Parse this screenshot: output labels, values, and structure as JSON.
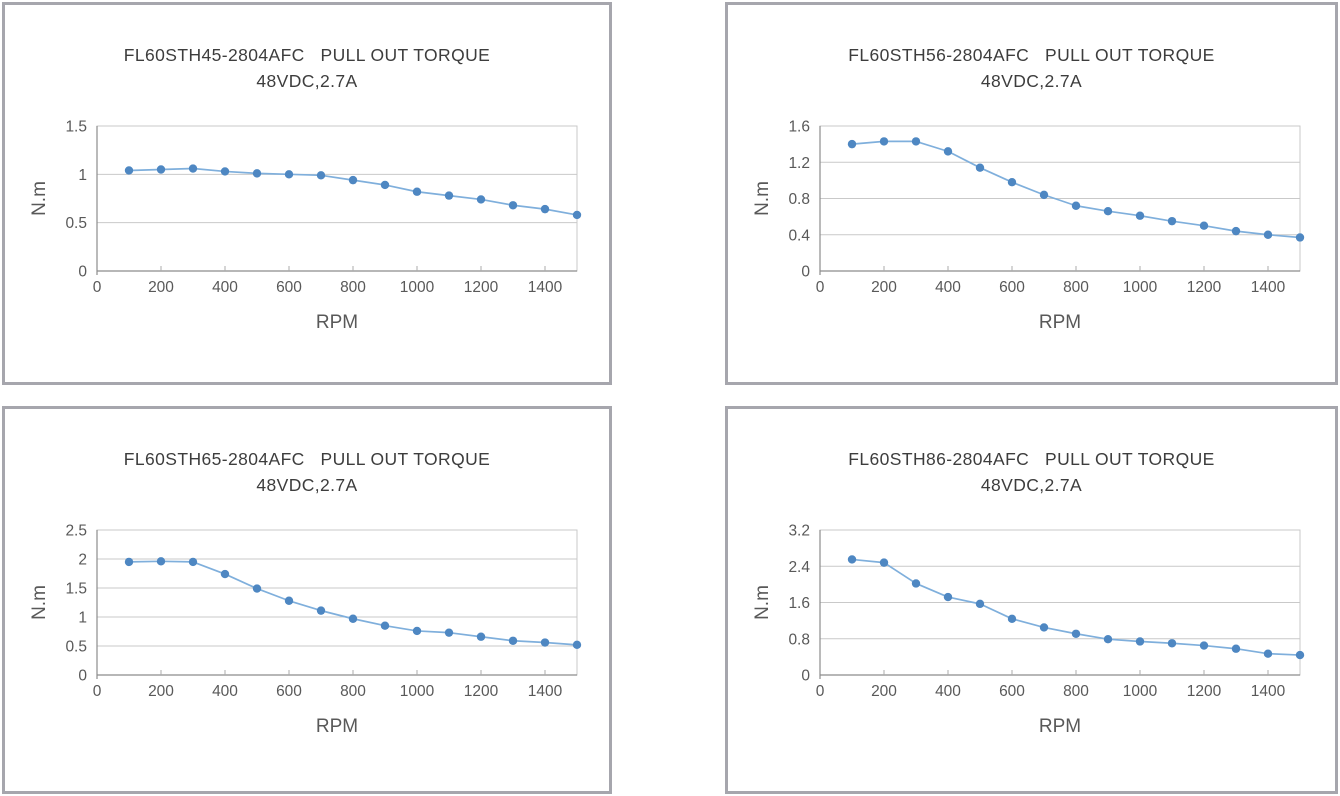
{
  "theme": {
    "panel_border": "#a6a6ad",
    "grid_color": "#c9c9c9",
    "axis_color": "#8c8c8c",
    "tick_color": "#ababab",
    "tick_label_color": "#595959",
    "axis_title_color": "#454545",
    "line_color": "#7fafdc",
    "marker_color": "#4e87c2",
    "background": "#ffffff"
  },
  "chart_data": [
    {
      "type": "line",
      "title": "FL60STH45-2804AFC   PULL OUT TORQUE",
      "subtitle": "48VDC,2.7A",
      "xlabel": "RPM",
      "ylabel": "N.m",
      "xlim": [
        0,
        1500
      ],
      "ylim": [
        0,
        1.5
      ],
      "xticks": [
        0,
        200,
        400,
        600,
        800,
        1000,
        1200,
        1400
      ],
      "xtick_labels": [
        "0",
        "200",
        "400",
        "600",
        "800",
        "1000",
        "1200",
        "1400"
      ],
      "yticks": [
        0,
        0.5,
        1,
        1.5
      ],
      "ytick_labels": [
        "0",
        "0.5",
        "1",
        "1.5"
      ],
      "grid": true,
      "legend": "none",
      "x": [
        100,
        200,
        300,
        400,
        500,
        600,
        700,
        800,
        900,
        1000,
        1100,
        1200,
        1300,
        1400,
        1500
      ],
      "series": [
        {
          "name": "pull-out-torque",
          "values": [
            1.04,
            1.05,
            1.06,
            1.03,
            1.01,
            1.0,
            0.99,
            0.94,
            0.89,
            0.82,
            0.78,
            0.74,
            0.68,
            0.64,
            0.58
          ]
        }
      ]
    },
    {
      "type": "line",
      "title": "FL60STH56-2804AFC   PULL OUT TORQUE",
      "subtitle": "48VDC,2.7A",
      "xlabel": "RPM",
      "ylabel": "N.m",
      "xlim": [
        0,
        1500
      ],
      "ylim": [
        0,
        1.6
      ],
      "xticks": [
        0,
        200,
        400,
        600,
        800,
        1000,
        1200,
        1400
      ],
      "xtick_labels": [
        "0",
        "200",
        "400",
        "600",
        "800",
        "1000",
        "1200",
        "1400"
      ],
      "yticks": [
        0,
        0.4,
        0.8,
        1.2,
        1.6
      ],
      "ytick_labels": [
        "0",
        "0.4",
        "0.8",
        "1.2",
        "1.6"
      ],
      "grid": true,
      "legend": "none",
      "x": [
        100,
        200,
        300,
        400,
        500,
        600,
        700,
        800,
        900,
        1000,
        1100,
        1200,
        1300,
        1400,
        1500
      ],
      "series": [
        {
          "name": "pull-out-torque",
          "values": [
            1.4,
            1.43,
            1.43,
            1.32,
            1.14,
            0.98,
            0.84,
            0.72,
            0.66,
            0.61,
            0.55,
            0.5,
            0.44,
            0.4,
            0.37
          ]
        }
      ]
    },
    {
      "type": "line",
      "title": "FL60STH65-2804AFC   PULL OUT TORQUE",
      "subtitle": "48VDC,2.7A",
      "xlabel": "RPM",
      "ylabel": "N.m",
      "xlim": [
        0,
        1500
      ],
      "ylim": [
        0,
        2.5
      ],
      "xticks": [
        0,
        200,
        400,
        600,
        800,
        1000,
        1200,
        1400
      ],
      "xtick_labels": [
        "0",
        "200",
        "400",
        "600",
        "800",
        "1000",
        "1200",
        "1400"
      ],
      "yticks": [
        0,
        0.5,
        1,
        1.5,
        2,
        2.5
      ],
      "ytick_labels": [
        "0",
        "0.5",
        "1",
        "1.5",
        "2",
        "2.5"
      ],
      "grid": true,
      "legend": "none",
      "x": [
        100,
        200,
        300,
        400,
        500,
        600,
        700,
        800,
        900,
        1000,
        1100,
        1200,
        1300,
        1400,
        1500
      ],
      "series": [
        {
          "name": "pull-out-torque",
          "values": [
            1.95,
            1.96,
            1.95,
            1.74,
            1.49,
            1.28,
            1.11,
            0.97,
            0.85,
            0.76,
            0.73,
            0.66,
            0.59,
            0.56,
            0.52
          ]
        }
      ]
    },
    {
      "type": "line",
      "title": "FL60STH86-2804AFC   PULL OUT TORQUE",
      "subtitle": "48VDC,2.7A",
      "xlabel": "RPM",
      "ylabel": "N.m",
      "xlim": [
        0,
        1500
      ],
      "ylim": [
        0,
        3.2
      ],
      "xticks": [
        0,
        200,
        400,
        600,
        800,
        1000,
        1200,
        1400
      ],
      "xtick_labels": [
        "0",
        "200",
        "400",
        "600",
        "800",
        "1000",
        "1200",
        "1400"
      ],
      "yticks": [
        0,
        0.8,
        1.6,
        2.4,
        3.2
      ],
      "ytick_labels": [
        "0",
        "0.8",
        "1.6",
        "2.4",
        "3.2"
      ],
      "grid": true,
      "legend": "none",
      "x": [
        100,
        200,
        300,
        400,
        500,
        600,
        700,
        800,
        900,
        1000,
        1100,
        1200,
        1300,
        1400,
        1500
      ],
      "series": [
        {
          "name": "pull-out-torque",
          "values": [
            2.55,
            2.48,
            2.02,
            1.72,
            1.57,
            1.24,
            1.05,
            0.91,
            0.79,
            0.74,
            0.7,
            0.65,
            0.58,
            0.47,
            0.44
          ]
        }
      ]
    }
  ]
}
